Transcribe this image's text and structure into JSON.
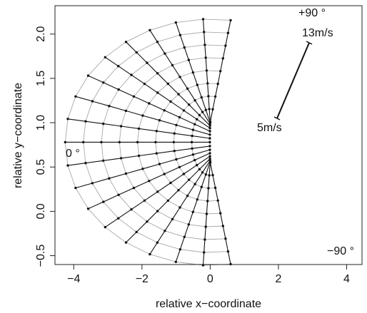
{
  "chart_data": {
    "type": "line",
    "title": "",
    "xlabel": "relative x−coordinate",
    "ylabel": "relative y−coordinate",
    "xlim": [
      -4.55,
      4.45
    ],
    "ylim": [
      -0.6,
      2.32
    ],
    "xticks": [
      "−4",
      "−2",
      "0",
      "2",
      "4"
    ],
    "xtick_values": [
      -4,
      -2,
      0,
      2,
      4
    ],
    "yticks": [
      "−0.5",
      "0.0",
      "0.5",
      "1.0",
      "1.5",
      "2.0"
    ],
    "ytick_values": [
      -0.5,
      0,
      0.5,
      1.0,
      1.5,
      2.0
    ],
    "grid": false,
    "center": [
      0,
      0.78
    ],
    "angle_degrees": [
      90,
      80,
      70,
      60,
      50,
      40,
      30,
      20,
      10,
      0,
      -10,
      -20,
      -30,
      -40,
      -50,
      -60,
      -70,
      -80,
      -90
    ],
    "speeds_mps": [
      5,
      6,
      7,
      8,
      9,
      10,
      11,
      12,
      13
    ],
    "annotations": {
      "top": "+90 °",
      "left": "0 °",
      "bottom": "−90 °",
      "speed_high": "13m/s",
      "speed_low": "5m/s"
    },
    "colors": {
      "grid_line": "#a8a8a8",
      "radial_line": "#111111",
      "point": "#111111"
    }
  }
}
